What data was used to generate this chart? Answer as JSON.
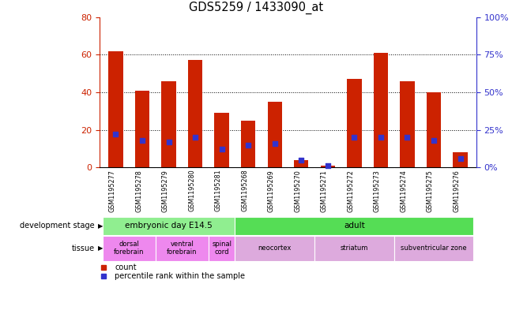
{
  "title": "GDS5259 / 1433090_at",
  "samples": [
    "GSM1195277",
    "GSM1195278",
    "GSM1195279",
    "GSM1195280",
    "GSM1195281",
    "GSM1195268",
    "GSM1195269",
    "GSM1195270",
    "GSM1195271",
    "GSM1195272",
    "GSM1195273",
    "GSM1195274",
    "GSM1195275",
    "GSM1195276"
  ],
  "count_values": [
    62,
    41,
    46,
    57,
    29,
    25,
    35,
    4,
    1,
    47,
    61,
    46,
    40,
    8
  ],
  "percentile_values": [
    22,
    18,
    17,
    20,
    12,
    15,
    16,
    5,
    1,
    20,
    20,
    20,
    18,
    6
  ],
  "bar_color": "#cc2200",
  "dot_color": "#3333cc",
  "ylim_left": [
    0,
    80
  ],
  "ylim_right": [
    0,
    100
  ],
  "yticks_left": [
    0,
    20,
    40,
    60,
    80
  ],
  "ytick_labels_left": [
    "0",
    "20",
    "40",
    "60",
    "80"
  ],
  "yticks_right": [
    0,
    25,
    50,
    75,
    100
  ],
  "ytick_labels_right": [
    "0%",
    "25%",
    "50%",
    "75%",
    "100%"
  ],
  "gridlines_at": [
    20,
    40,
    60
  ],
  "dev_stage_groups": [
    {
      "label": "embryonic day E14.5",
      "start": 0,
      "end": 5,
      "color": "#90ee90"
    },
    {
      "label": "adult",
      "start": 5,
      "end": 14,
      "color": "#55dd55"
    }
  ],
  "tissue_groups": [
    {
      "label": "dorsal\nforebrain",
      "start": 0,
      "end": 2,
      "color": "#ee88ee"
    },
    {
      "label": "ventral\nforebrain",
      "start": 2,
      "end": 4,
      "color": "#ee88ee"
    },
    {
      "label": "spinal\ncord",
      "start": 4,
      "end": 5,
      "color": "#ee88ee"
    },
    {
      "label": "neocortex",
      "start": 5,
      "end": 8,
      "color": "#ddaadd"
    },
    {
      "label": "striatum",
      "start": 8,
      "end": 11,
      "color": "#ddaadd"
    },
    {
      "label": "subventricular zone",
      "start": 11,
      "end": 14,
      "color": "#ddaadd"
    }
  ],
  "plot_bg": "#ffffff",
  "axis_label_color_left": "#cc2200",
  "axis_label_color_right": "#3333cc",
  "tick_bg": "#cccccc"
}
